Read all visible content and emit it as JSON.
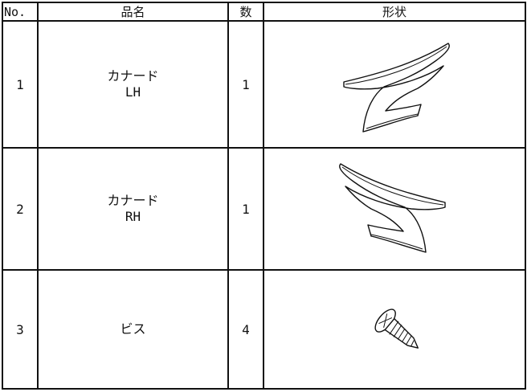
{
  "table": {
    "header": [
      "No.",
      "品名",
      "数",
      "形状"
    ],
    "rows": [
      {
        "no": "1",
        "name": [
          "カナード",
          "LH"
        ],
        "qty": "1"
      },
      {
        "no": "2",
        "name": [
          "カナード",
          "RH"
        ],
        "qty": "1"
      },
      {
        "no": "3",
        "name": [
          "ビス"
        ],
        "qty": "4"
      }
    ]
  }
}
